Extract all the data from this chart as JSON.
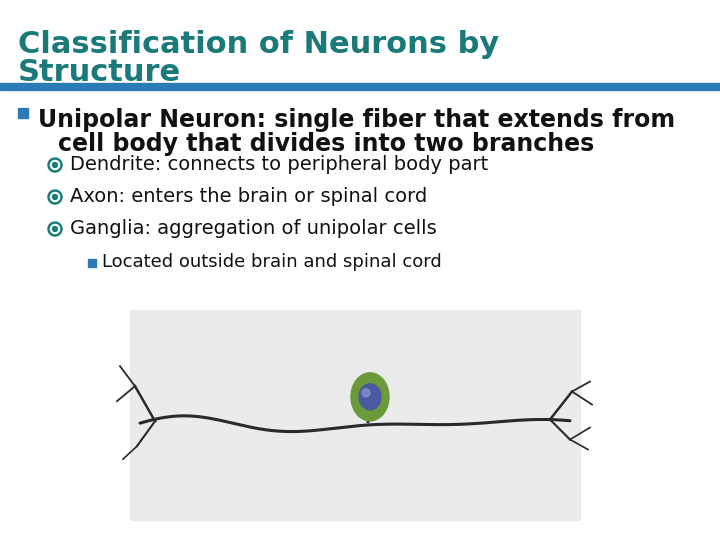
{
  "bg_color": "#ffffff",
  "title_color": "#1a7a7a",
  "title_line1": "Classification of Neurons by",
  "title_line2": "Structure",
  "title_fontsize": 22,
  "accent_bar_color": "#2b7bb9",
  "bullet_square_color": "#2b7bb9",
  "bullet1_line1": "Unipolar Neuron: single fiber that extends from",
  "bullet1_line2": "cell body that divides into two branches",
  "bullet1_fontsize": 17,
  "sub_bullet_color": "#1a7a7a",
  "sub_bullets": [
    "Dendrite: connects to peripheral body part",
    "Axon: enters the brain or spinal cord",
    "Ganglia: aggregation of unipolar cells"
  ],
  "sub_bullet_fontsize": 14,
  "sub_sub_bullet_color": "#2b7bb9",
  "sub_sub_bullet": "Located outside brain and spinal cord",
  "sub_sub_bullet_fontsize": 13,
  "neuron_bg": "#ebebeb"
}
